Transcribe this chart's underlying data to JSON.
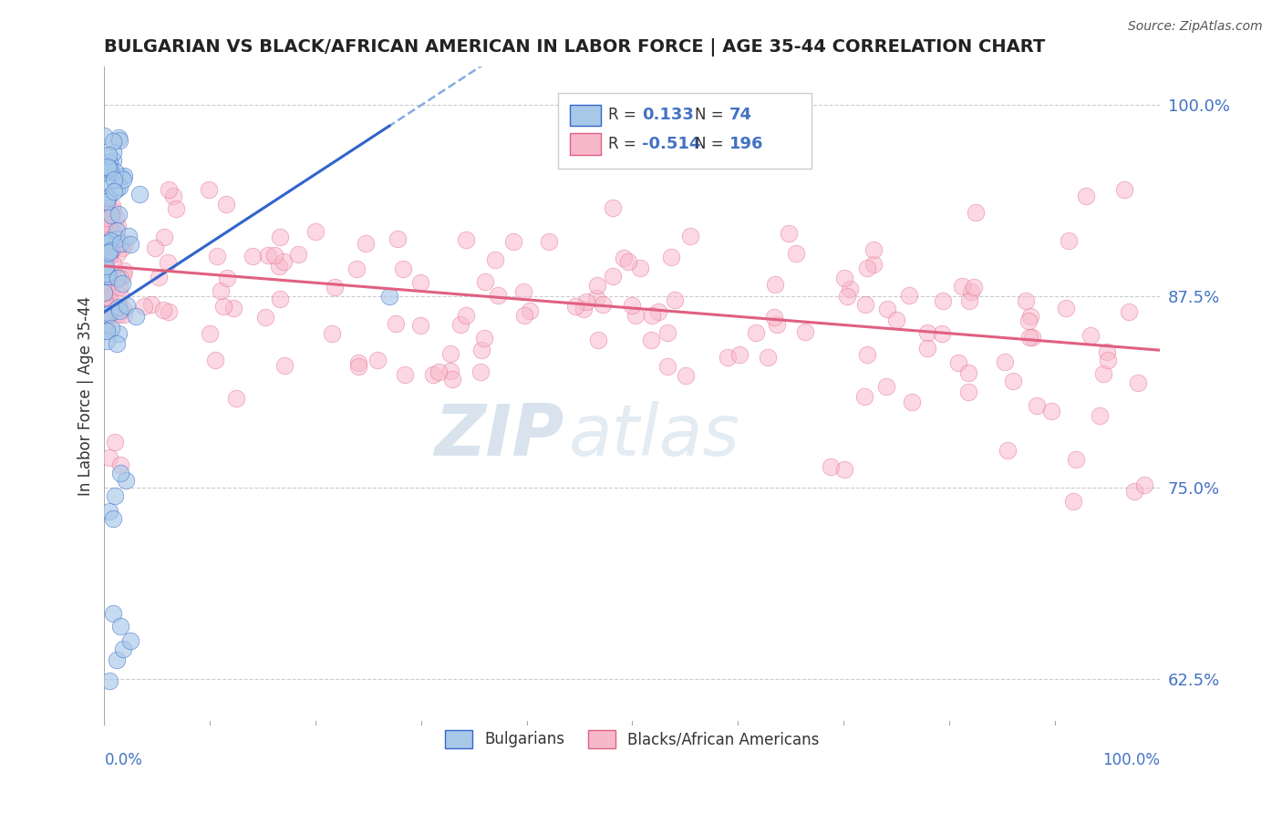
{
  "title": "BULGARIAN VS BLACK/AFRICAN AMERICAN IN LABOR FORCE | AGE 35-44 CORRELATION CHART",
  "source": "Source: ZipAtlas.com",
  "ylabel": "In Labor Force | Age 35-44",
  "y_tick_labels": [
    "62.5%",
    "75.0%",
    "87.5%",
    "100.0%"
  ],
  "y_tick_values": [
    0.625,
    0.75,
    0.875,
    1.0
  ],
  "x_range": [
    0.0,
    1.0
  ],
  "y_range": [
    0.595,
    1.025
  ],
  "blue_scatter_color": "#a8c8e8",
  "pink_scatter_color": "#f8b8cc",
  "blue_line_color": "#3366CC",
  "pink_line_color": "#E06080",
  "blue_dashed_color": "#6699DD",
  "watermark_zip": "ZIP",
  "watermark_atlas": "atlas",
  "background_color": "#ffffff",
  "source_color": "#555555",
  "blue_R": "0.133",
  "blue_N": "74",
  "pink_R": "-0.514",
  "pink_N": "196",
  "accent_color": "#4472C4",
  "seed": 7
}
